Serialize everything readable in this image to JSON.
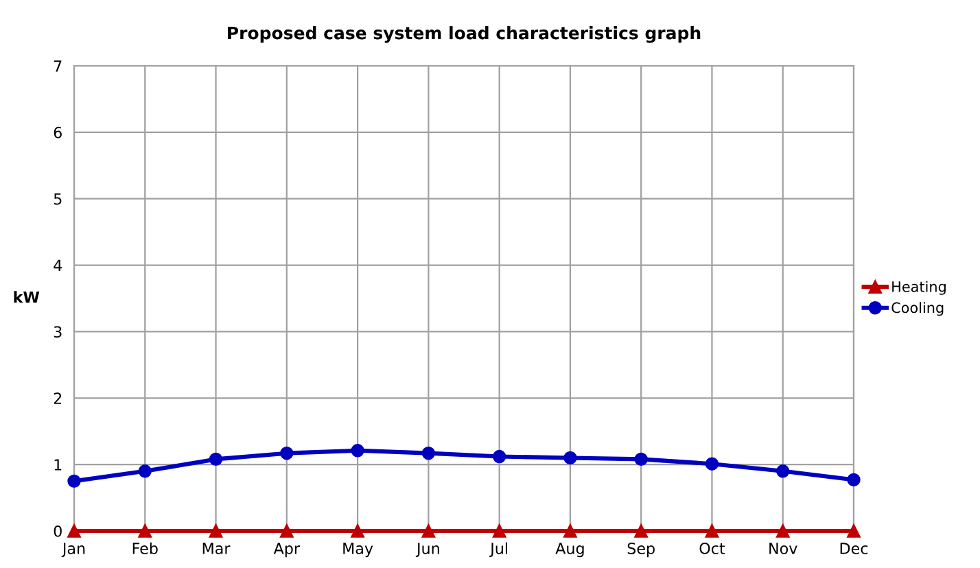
{
  "chart_data": {
    "type": "line",
    "title": "Proposed case system load characteristics graph",
    "ylabel": "kW",
    "categories": [
      "Jan",
      "Feb",
      "Mar",
      "Apr",
      "May",
      "Jun",
      "Jul",
      "Aug",
      "Sep",
      "Oct",
      "Nov",
      "Dec"
    ],
    "series": [
      {
        "name": "Heating",
        "color": "#c00000",
        "marker": "triangle",
        "values": [
          0,
          0,
          0,
          0,
          0,
          0,
          0,
          0,
          0,
          0,
          0,
          0
        ]
      },
      {
        "name": "Cooling",
        "color": "#0000c0",
        "marker": "circle",
        "values": [
          0.75,
          0.9,
          1.08,
          1.17,
          1.21,
          1.17,
          1.12,
          1.1,
          1.08,
          1.01,
          0.9,
          0.77
        ]
      }
    ],
    "ylim": [
      0,
      7
    ],
    "yticks": [
      0,
      1,
      2,
      3,
      4,
      5,
      6,
      7
    ],
    "grid": true,
    "legend": "right",
    "line_style": "solid"
  }
}
